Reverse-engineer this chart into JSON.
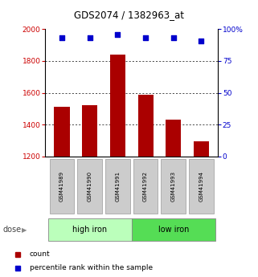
{
  "title": "GDS2074 / 1382963_at",
  "categories": [
    "GSM41989",
    "GSM41990",
    "GSM41991",
    "GSM41992",
    "GSM41993",
    "GSM41994"
  ],
  "bar_values": [
    1510,
    1520,
    1840,
    1590,
    1430,
    1295
  ],
  "dot_values": [
    93,
    93,
    96,
    93,
    93,
    91
  ],
  "ylim_left": [
    1200,
    2000
  ],
  "ylim_right": [
    0,
    100
  ],
  "bar_color": "#AA0000",
  "dot_color": "#0000CC",
  "yticks_left": [
    1200,
    1400,
    1600,
    1800,
    2000
  ],
  "yticks_right": [
    0,
    25,
    50,
    75,
    100
  ],
  "ytick_labels_right": [
    "0",
    "25",
    "50",
    "75",
    "100%"
  ],
  "group1_label": "high iron",
  "group2_label": "low iron",
  "dose_label": "dose",
  "legend_count": "count",
  "legend_percentile": "percentile rank within the sample",
  "bg_color": "#FFFFFF",
  "tick_color_left": "#CC0000",
  "tick_color_right": "#0000CC",
  "group1_color": "#BBFFBB",
  "group2_color": "#55DD55",
  "sample_box_color": "#CCCCCC",
  "grid_dotted_color": "#555555"
}
